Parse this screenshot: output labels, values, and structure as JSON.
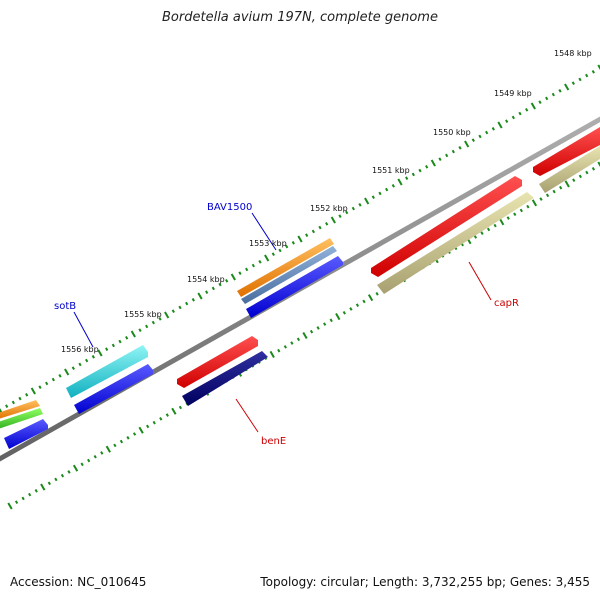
{
  "title": "Bordetella avium 197N, complete genome",
  "footer": {
    "accession": "Accession: NC_010645",
    "summary": "Topology: circular; Length: 3,732,255 bp; Genes: 3,455"
  },
  "ruler_ticks": [
    "1548 kbp",
    "1549 kbp",
    "1550 kbp",
    "1551 kbp",
    "1552 kbp",
    "1553 kbp",
    "1554 kbp",
    "1555 kbp",
    "1556 kbp"
  ],
  "gene_labels": {
    "bav1500": "BAV1500",
    "sotb": "sotB",
    "bene": "benE",
    "capr": "capR"
  },
  "colors": {
    "blue_label": "#0000cc",
    "red_label": "#cc0000",
    "backbone": "#808080",
    "tick_green": "#1a8a1a"
  }
}
